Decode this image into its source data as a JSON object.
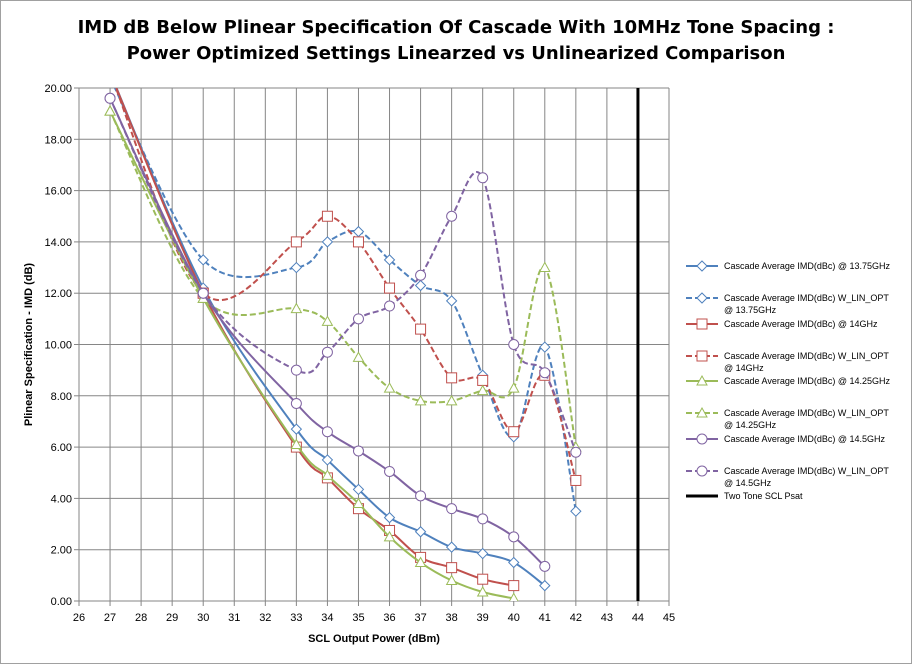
{
  "chart_data": {
    "type": "line",
    "title_line1": "IMD dB Below Plinear Specification Of Cascade With 10MHz Tone Spacing :",
    "title_line2": "Power Optimized Settings Linearzed vs Unlinearized Comparison",
    "xlabel": "SCL Output Power (dBm)",
    "ylabel": "Plinear Specification  - IMD (dB)",
    "xlim": [
      26,
      45
    ],
    "ylim": [
      0,
      20
    ],
    "x_ticks": [
      "26",
      "27",
      "28",
      "29",
      "30",
      "31",
      "32",
      "33",
      "34",
      "35",
      "36",
      "37",
      "38",
      "39",
      "40",
      "41",
      "42",
      "43",
      "44",
      "45"
    ],
    "y_ticks": [
      "0.00",
      "2.00",
      "4.00",
      "6.00",
      "8.00",
      "10.00",
      "12.00",
      "14.00",
      "16.00",
      "18.00",
      "20.00"
    ],
    "grid": true,
    "legend_position": "right",
    "series": [
      {
        "name": "Cascade Average IMD(dBc) @ 13.75GHz",
        "color": "#4f81bd",
        "dash": false,
        "marker": "diamond",
        "x": [
          27,
          30,
          33,
          34,
          35,
          36,
          37,
          38,
          39,
          40,
          41
        ],
        "y": [
          20.6,
          12.2,
          6.7,
          5.5,
          4.35,
          3.25,
          2.7,
          2.1,
          1.85,
          1.5,
          0.6
        ]
      },
      {
        "name": "Cascade Average IMD(dBc) W_LIN_OPT @ 13.75GHz",
        "color": "#4f81bd",
        "dash": true,
        "marker": "diamond",
        "x": [
          27,
          30,
          33,
          34,
          35,
          36,
          37,
          38,
          39,
          40,
          41,
          42
        ],
        "y": [
          20.4,
          13.3,
          13.0,
          14.0,
          14.4,
          13.3,
          12.3,
          11.7,
          8.8,
          6.4,
          9.9,
          3.5
        ]
      },
      {
        "name": "Cascade Average IMD(dBc) @ 14GHz",
        "color": "#c0504d",
        "dash": false,
        "marker": "square",
        "x": [
          27,
          30,
          33,
          34,
          35,
          36,
          37,
          38,
          39,
          40
        ],
        "y": [
          20.6,
          12.0,
          6.0,
          4.8,
          3.6,
          2.75,
          1.7,
          1.3,
          0.85,
          0.6
        ]
      },
      {
        "name": "Cascade Average IMD(dBc) W_LIN_OPT @ 14GHz",
        "color": "#c0504d",
        "dash": true,
        "marker": "square",
        "x": [
          27,
          30,
          33,
          34,
          35,
          36,
          37,
          38,
          39,
          40,
          41,
          42
        ],
        "y": [
          20.6,
          12.0,
          14.0,
          15.0,
          14.0,
          12.2,
          10.6,
          8.7,
          8.6,
          6.6,
          8.8,
          4.7
        ]
      },
      {
        "name": "Cascade Average IMD(dBc) @ 14.25GHz",
        "color": "#9bbb59",
        "dash": false,
        "marker": "triangle",
        "x": [
          27,
          30,
          33,
          34,
          35,
          36,
          37,
          38,
          39,
          40
        ],
        "y": [
          19.1,
          11.8,
          6.1,
          4.9,
          3.8,
          2.5,
          1.5,
          0.8,
          0.35,
          0.1
        ]
      },
      {
        "name": "Cascade Average IMD(dBc) W_LIN_OPT @ 14.25GHz",
        "color": "#9bbb59",
        "dash": true,
        "marker": "triangle",
        "x": [
          27,
          30,
          33,
          34,
          35,
          36,
          37,
          38,
          39,
          40,
          41,
          42
        ],
        "y": [
          19.1,
          11.8,
          11.4,
          10.9,
          9.5,
          8.3,
          7.8,
          7.8,
          8.2,
          8.3,
          13.0,
          6.0
        ]
      },
      {
        "name": "Cascade Average IMD(dBc) @ 14.5GHz",
        "color": "#8064a2",
        "dash": false,
        "marker": "circle",
        "x": [
          27,
          30,
          33,
          34,
          35,
          36,
          37,
          38,
          39,
          40,
          41
        ],
        "y": [
          19.6,
          12.0,
          7.7,
          6.6,
          5.85,
          5.05,
          4.1,
          3.6,
          3.2,
          2.5,
          1.35
        ]
      },
      {
        "name": "Cascade Average IMD(dBc) W_LIN_OPT @ 14.5GHz",
        "color": "#8064a2",
        "dash": true,
        "marker": "circle",
        "x": [
          27,
          30,
          33,
          34,
          35,
          36,
          37,
          38,
          39,
          40,
          41,
          42
        ],
        "y": [
          19.6,
          12.0,
          9.0,
          9.7,
          11.0,
          11.5,
          12.7,
          15.0,
          16.5,
          10.0,
          8.9,
          5.8
        ]
      },
      {
        "name": "Two Tone SCL Psat",
        "color": "#000000",
        "dash": false,
        "marker": "none",
        "bold": true,
        "x": [
          44,
          44
        ],
        "y": [
          0,
          20
        ]
      }
    ]
  }
}
